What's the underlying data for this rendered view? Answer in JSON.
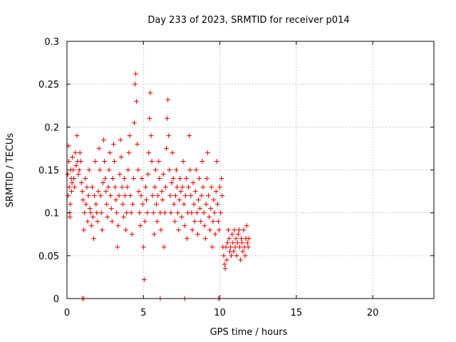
{
  "chart_data": {
    "type": "scatter",
    "title": "Day 233 of 2023, SRMTID for receiver p014",
    "xlabel": "GPS time / hours",
    "ylabel": "SRMTID / TECUs",
    "xlim": [
      0,
      24
    ],
    "ylim": [
      0,
      0.3
    ],
    "grid": true,
    "marker": "+",
    "color": "#e00000",
    "x_ticks": [
      0,
      5,
      10,
      15,
      20
    ],
    "x_tick_labels": [
      "0",
      "5",
      "10",
      "15",
      "20"
    ],
    "y_ticks": [
      0,
      0.05,
      0.1,
      0.15,
      0.2,
      0.25,
      0.3
    ],
    "y_tick_labels": [
      "0",
      "0.05",
      "0.1",
      "0.15",
      "0.2",
      "0.25",
      "0.3"
    ],
    "series": [
      {
        "name": "SRMTID p014",
        "points": [
          [
            0.05,
            0.145
          ],
          [
            0.08,
            0.12
          ],
          [
            0.1,
            0.178
          ],
          [
            0.12,
            0.16
          ],
          [
            0.15,
            0.13
          ],
          [
            0.18,
            0.1
          ],
          [
            0.2,
            0.095
          ],
          [
            0.22,
            0.11
          ],
          [
            0.25,
            0.15
          ],
          [
            0.28,
            0.14
          ],
          [
            0.3,
            0.125
          ],
          [
            0.33,
            0.135
          ],
          [
            0.35,
            0.165
          ],
          [
            0.4,
            0.15
          ],
          [
            0.45,
            0.14
          ],
          [
            0.5,
            0.13
          ],
          [
            0.55,
            0.17
          ],
          [
            0.6,
            0.155
          ],
          [
            0.65,
            0.19
          ],
          [
            0.7,
            0.16
          ],
          [
            0.75,
            0.145
          ],
          [
            0.8,
            0.15
          ],
          [
            0.85,
            0.17
          ],
          [
            0.9,
            0.16
          ],
          [
            0.95,
            0.135
          ],
          [
            1.0,
            0.125
          ],
          [
            1.05,
            0.115
          ],
          [
            1.1,
            0.08
          ],
          [
            1.15,
            0.1
          ],
          [
            1.2,
            0.14
          ],
          [
            1.25,
            0.11
          ],
          [
            1.3,
            0.13
          ],
          [
            1.35,
            0.09
          ],
          [
            1.4,
            0.12
          ],
          [
            1.45,
            0.15
          ],
          [
            1.5,
            0.105
          ],
          [
            1.55,
            0.1
          ],
          [
            1.6,
            0.085
          ],
          [
            1.65,
            0.13
          ],
          [
            1.7,
            0.095
          ],
          [
            1.75,
            0.07
          ],
          [
            1.8,
            0.12
          ],
          [
            1.85,
            0.16
          ],
          [
            1.9,
            0.11
          ],
          [
            1.95,
            0.1
          ],
          [
            2.0,
            0.09
          ],
          [
            2.05,
            0.125
          ],
          [
            2.1,
            0.175
          ],
          [
            2.15,
            0.15
          ],
          [
            2.2,
            0.12
          ],
          [
            2.25,
            0.1
          ],
          [
            2.3,
            0.08
          ],
          [
            2.35,
            0.135
          ],
          [
            2.4,
            0.185
          ],
          [
            2.45,
            0.16
          ],
          [
            2.5,
            0.14
          ],
          [
            2.55,
            0.125
          ],
          [
            2.6,
            0.11
          ],
          [
            2.65,
            0.095
          ],
          [
            2.7,
            0.13
          ],
          [
            2.75,
            0.15
          ],
          [
            2.8,
            0.17
          ],
          [
            2.85,
            0.12
          ],
          [
            2.9,
            0.105
          ],
          [
            2.95,
            0.09
          ],
          [
            3.0,
            0.14
          ],
          [
            3.05,
            0.18
          ],
          [
            3.1,
            0.16
          ],
          [
            3.15,
            0.13
          ],
          [
            3.2,
            0.115
          ],
          [
            3.25,
            0.1
          ],
          [
            3.3,
            0.06
          ],
          [
            3.35,
            0.085
          ],
          [
            3.4,
            0.12
          ],
          [
            3.45,
            0.145
          ],
          [
            3.5,
            0.185
          ],
          [
            3.55,
            0.165
          ],
          [
            3.6,
            0.13
          ],
          [
            3.65,
            0.11
          ],
          [
            3.7,
            0.095
          ],
          [
            3.75,
            0.14
          ],
          [
            3.8,
            0.12
          ],
          [
            3.85,
            0.08
          ],
          [
            3.9,
            0.1
          ],
          [
            3.95,
            0.13
          ],
          [
            4.0,
            0.15
          ],
          [
            4.05,
            0.17
          ],
          [
            4.1,
            0.19
          ],
          [
            4.15,
            0.12
          ],
          [
            4.2,
            0.1
          ],
          [
            4.25,
            0.075
          ],
          [
            4.3,
            0.11
          ],
          [
            4.35,
            0.14
          ],
          [
            4.4,
            0.205
          ],
          [
            4.45,
            0.25
          ],
          [
            4.5,
            0.262
          ],
          [
            4.55,
            0.23
          ],
          [
            4.6,
            0.18
          ],
          [
            4.65,
            0.15
          ],
          [
            4.7,
            0.125
          ],
          [
            4.75,
            0.1
          ],
          [
            4.8,
            0.085
          ],
          [
            4.85,
            0.12
          ],
          [
            4.9,
            0.14
          ],
          [
            4.95,
            0.11
          ],
          [
            5.0,
            0.06
          ],
          [
            5.05,
            0.022
          ],
          [
            5.1,
            0.09
          ],
          [
            5.15,
            0.13
          ],
          [
            5.2,
            0.115
          ],
          [
            5.25,
            0.1
          ],
          [
            5.3,
            0.145
          ],
          [
            5.35,
            0.17
          ],
          [
            5.4,
            0.21
          ],
          [
            5.45,
            0.24
          ],
          [
            5.5,
            0.19
          ],
          [
            5.55,
            0.16
          ],
          [
            5.6,
            0.12
          ],
          [
            5.65,
            0.1
          ],
          [
            5.7,
            0.075
          ],
          [
            5.75,
            0.13
          ],
          [
            5.8,
            0.15
          ],
          [
            5.85,
            0.11
          ],
          [
            5.9,
            0.09
          ],
          [
            5.95,
            0.12
          ],
          [
            6.0,
            0.16
          ],
          [
            6.05,
            0.14
          ],
          [
            6.1,
            0.1
          ],
          [
            6.15,
            0.08
          ],
          [
            6.2,
            0.125
          ],
          [
            6.25,
            0.115
          ],
          [
            6.3,
            0.145
          ],
          [
            6.35,
            0.06
          ],
          [
            6.4,
            0.1
          ],
          [
            6.45,
            0.13
          ],
          [
            6.5,
            0.175
          ],
          [
            6.55,
            0.21
          ],
          [
            6.6,
            0.232
          ],
          [
            6.65,
            0.19
          ],
          [
            6.7,
            0.15
          ],
          [
            6.75,
            0.12
          ],
          [
            6.8,
            0.1
          ],
          [
            6.85,
            0.135
          ],
          [
            6.9,
            0.17
          ],
          [
            6.95,
            0.14
          ],
          [
            7.0,
            0.11
          ],
          [
            7.05,
            0.09
          ],
          [
            7.1,
            0.12
          ],
          [
            7.15,
            0.15
          ],
          [
            7.2,
            0.13
          ],
          [
            7.25,
            0.1
          ],
          [
            7.3,
            0.08
          ],
          [
            7.35,
            0.115
          ],
          [
            7.4,
            0.14
          ],
          [
            7.45,
            0.125
          ],
          [
            7.5,
            0.095
          ],
          [
            7.55,
            0.13
          ],
          [
            7.6,
            0.16
          ],
          [
            7.65,
            0.11
          ],
          [
            7.7,
            0.085
          ],
          [
            7.75,
            0.12
          ],
          [
            7.8,
            0.14
          ],
          [
            7.85,
            0.07
          ],
          [
            7.9,
            0.1
          ],
          [
            7.95,
            0.13
          ],
          [
            8.0,
            0.19
          ],
          [
            8.05,
            0.15
          ],
          [
            8.1,
            0.12
          ],
          [
            8.15,
            0.1
          ],
          [
            8.2,
            0.08
          ],
          [
            8.25,
            0.135
          ],
          [
            8.3,
            0.11
          ],
          [
            8.35,
            0.09
          ],
          [
            8.4,
            0.125
          ],
          [
            8.45,
            0.15
          ],
          [
            8.5,
            0.1
          ],
          [
            8.55,
            0.075
          ],
          [
            8.6,
            0.115
          ],
          [
            8.65,
            0.14
          ],
          [
            8.7,
            0.105
          ],
          [
            8.75,
            0.09
          ],
          [
            8.8,
            0.12
          ],
          [
            8.85,
            0.16
          ],
          [
            8.9,
            0.13
          ],
          [
            8.95,
            0.1
          ],
          [
            9.0,
            0.085
          ],
          [
            9.05,
            0.07
          ],
          [
            9.1,
            0.11
          ],
          [
            9.15,
            0.14
          ],
          [
            9.2,
            0.17
          ],
          [
            9.25,
            0.12
          ],
          [
            9.3,
            0.095
          ],
          [
            9.35,
            0.08
          ],
          [
            9.4,
            0.105
          ],
          [
            9.45,
            0.13
          ],
          [
            9.5,
            0.06
          ],
          [
            9.55,
            0.09
          ],
          [
            9.6,
            0.115
          ],
          [
            9.65,
            0.1
          ],
          [
            9.7,
            0.075
          ],
          [
            9.75,
            0.125
          ],
          [
            9.8,
            0.16
          ],
          [
            9.85,
            0.11
          ],
          [
            9.9,
            0.09
          ],
          [
            9.95,
            0.08
          ],
          [
            10.0,
            0.13
          ],
          [
            10.05,
            0.1
          ],
          [
            10.1,
            0.14
          ],
          [
            10.15,
            0.12
          ],
          [
            10.2,
            0.06
          ],
          [
            10.25,
            0.05
          ],
          [
            10.3,
            0.04
          ],
          [
            10.35,
            0.035
          ],
          [
            10.4,
            0.06
          ],
          [
            10.45,
            0.045
          ],
          [
            10.5,
            0.065
          ],
          [
            10.55,
            0.08
          ],
          [
            10.6,
            0.07
          ],
          [
            10.65,
            0.055
          ],
          [
            10.7,
            0.06
          ],
          [
            10.75,
            0.05
          ],
          [
            10.8,
            0.075
          ],
          [
            10.85,
            0.065
          ],
          [
            10.9,
            0.055
          ],
          [
            10.95,
            0.08
          ],
          [
            11.0,
            0.06
          ],
          [
            11.05,
            0.07
          ],
          [
            11.1,
            0.05
          ],
          [
            11.15,
            0.065
          ],
          [
            11.2,
            0.075
          ],
          [
            11.25,
            0.08
          ],
          [
            11.3,
            0.06
          ],
          [
            11.35,
            0.045
          ],
          [
            11.4,
            0.07
          ],
          [
            11.45,
            0.065
          ],
          [
            11.5,
            0.055
          ],
          [
            11.55,
            0.08
          ],
          [
            11.6,
            0.06
          ],
          [
            11.65,
            0.05
          ],
          [
            11.7,
            0.07
          ],
          [
            11.75,
            0.085
          ],
          [
            11.8,
            0.065
          ],
          [
            11.85,
            0.06
          ],
          [
            11.9,
            0.07
          ],
          [
            1.0,
            0.0
          ],
          [
            1.1,
            0.0
          ],
          [
            6.1,
            0.0
          ],
          [
            7.7,
            0.0
          ],
          [
            9.9,
            0.0
          ],
          [
            10.0,
            0.0
          ]
        ]
      }
    ]
  }
}
